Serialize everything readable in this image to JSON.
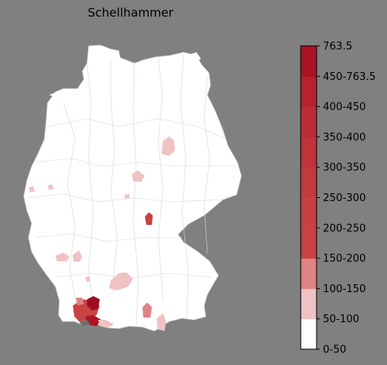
{
  "title": "Schellhammer",
  "legend": {
    "labels": [
      "0-50",
      "50-100",
      "100-150",
      "150-200",
      "200-250",
      "250-300",
      "300-350",
      "350-400",
      "400-450",
      "450-763.5",
      "763.5"
    ],
    "bins": [
      {
        "label": "0-50",
        "color": "#ffffff"
      },
      {
        "label": "50-100",
        "color": "#efc3c3"
      },
      {
        "label": "100-150",
        "color": "#df8384"
      },
      {
        "label": "150-200",
        "color": "#c84244"
      },
      {
        "label": "200-250",
        "color": "#c64044"
      },
      {
        "label": "250-300",
        "color": "#c33a3f"
      },
      {
        "label": "300-350",
        "color": "#bf343a"
      },
      {
        "label": "350-400",
        "color": "#bb2d35"
      },
      {
        "label": "400-450",
        "color": "#b4232e"
      },
      {
        "label": "450-763.5",
        "color": "#aa1425"
      },
      {
        "label": "763.5",
        "color": "#a00c1f"
      }
    ]
  },
  "colors": {
    "background": "#808080",
    "land": "#ffffff",
    "borders": "#c8c8c8"
  }
}
